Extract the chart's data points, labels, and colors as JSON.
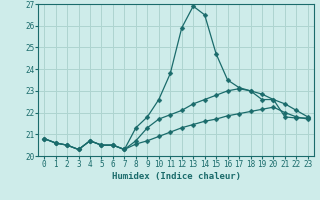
{
  "xlabel": "Humidex (Indice chaleur)",
  "ylabel": "",
  "background_color": "#ceecea",
  "grid_color": "#aed4d0",
  "line_color": "#1a6b6b",
  "xlim": [
    -0.5,
    23.5
  ],
  "ylim": [
    20,
    27
  ],
  "yticks": [
    20,
    21,
    22,
    23,
    24,
    25,
    26,
    27
  ],
  "xticks": [
    0,
    1,
    2,
    3,
    4,
    5,
    6,
    7,
    8,
    9,
    10,
    11,
    12,
    13,
    14,
    15,
    16,
    17,
    18,
    19,
    20,
    21,
    22,
    23
  ],
  "line1_x": [
    0,
    1,
    2,
    3,
    4,
    5,
    6,
    7,
    8,
    9,
    10,
    11,
    12,
    13,
    14,
    15,
    16,
    17,
    18,
    19,
    20,
    21,
    22,
    23
  ],
  "line1_y": [
    20.8,
    20.6,
    20.5,
    20.3,
    20.7,
    20.5,
    20.5,
    20.3,
    21.3,
    21.8,
    22.6,
    23.8,
    25.9,
    26.9,
    26.5,
    24.7,
    23.5,
    23.15,
    23.0,
    22.6,
    22.6,
    21.8,
    21.75,
    21.75
  ],
  "line2_x": [
    0,
    1,
    2,
    3,
    4,
    5,
    6,
    7,
    8,
    9,
    10,
    11,
    12,
    13,
    14,
    15,
    16,
    17,
    18,
    19,
    20,
    21,
    22,
    23
  ],
  "line2_y": [
    20.8,
    20.6,
    20.5,
    20.3,
    20.7,
    20.5,
    20.5,
    20.3,
    20.7,
    21.3,
    21.7,
    21.9,
    22.1,
    22.4,
    22.6,
    22.8,
    23.0,
    23.1,
    23.0,
    22.85,
    22.6,
    22.4,
    22.1,
    21.8
  ],
  "line3_x": [
    0,
    1,
    2,
    3,
    4,
    5,
    6,
    7,
    8,
    9,
    10,
    11,
    12,
    13,
    14,
    15,
    16,
    17,
    18,
    19,
    20,
    21,
    22,
    23
  ],
  "line3_y": [
    20.8,
    20.6,
    20.5,
    20.3,
    20.7,
    20.5,
    20.5,
    20.3,
    20.55,
    20.7,
    20.9,
    21.1,
    21.3,
    21.45,
    21.6,
    21.7,
    21.85,
    21.95,
    22.05,
    22.15,
    22.25,
    22.0,
    21.8,
    21.7
  ]
}
